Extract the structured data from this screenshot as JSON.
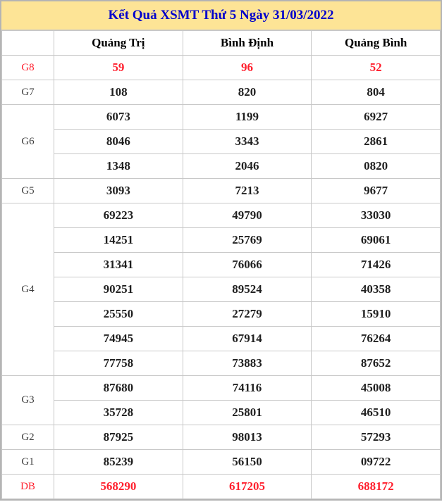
{
  "title": "Kết Quả XSMT Thứ 5 Ngày 31/03/2022",
  "columns": [
    "Quảng Trị",
    "Bình Định",
    "Quảng Bình"
  ],
  "prizes": [
    {
      "label": "G8",
      "highlight": true,
      "rows": [
        [
          "59",
          "96",
          "52"
        ]
      ]
    },
    {
      "label": "G7",
      "highlight": false,
      "rows": [
        [
          "108",
          "820",
          "804"
        ]
      ]
    },
    {
      "label": "G6",
      "highlight": false,
      "rows": [
        [
          "6073",
          "1199",
          "6927"
        ],
        [
          "8046",
          "3343",
          "2861"
        ],
        [
          "1348",
          "2046",
          "0820"
        ]
      ]
    },
    {
      "label": "G5",
      "highlight": false,
      "rows": [
        [
          "3093",
          "7213",
          "9677"
        ]
      ]
    },
    {
      "label": "G4",
      "highlight": false,
      "rows": [
        [
          "69223",
          "49790",
          "33030"
        ],
        [
          "14251",
          "25769",
          "69061"
        ],
        [
          "31341",
          "76066",
          "71426"
        ],
        [
          "90251",
          "89524",
          "40358"
        ],
        [
          "25550",
          "27279",
          "15910"
        ],
        [
          "74945",
          "67914",
          "76264"
        ],
        [
          "77758",
          "73883",
          "87652"
        ]
      ]
    },
    {
      "label": "G3",
      "highlight": false,
      "rows": [
        [
          "87680",
          "74116",
          "45008"
        ],
        [
          "35728",
          "25801",
          "46510"
        ]
      ]
    },
    {
      "label": "G2",
      "highlight": false,
      "rows": [
        [
          "87925",
          "98013",
          "57293"
        ]
      ]
    },
    {
      "label": "G1",
      "highlight": false,
      "rows": [
        [
          "85239",
          "56150",
          "09722"
        ]
      ]
    },
    {
      "label": "DB",
      "highlight": true,
      "rows": [
        [
          "568290",
          "617205",
          "688172"
        ]
      ]
    }
  ],
  "colors": {
    "banner_bg": "#fde496",
    "title_text": "#0000cc",
    "highlight_red": "#ff1f2d",
    "cell_border": "#c8c8c8",
    "outer_border": "#b4b4b4",
    "value_text": "#1f1f1f",
    "label_text": "#3d3d3d"
  }
}
